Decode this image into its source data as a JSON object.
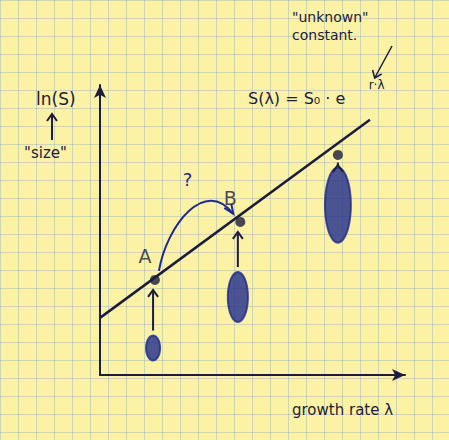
{
  "chart_data": {
    "type": "line",
    "xlabel": "growth rate λ",
    "ylabel": "ln(S)",
    "ylabel_note": "\"size\"",
    "equation": "S(λ) = S₀ · e",
    "equation_exponent": "r·λ",
    "constant_note": "\"unknown\" constant.",
    "transition_label": "?",
    "series": [
      {
        "type": "line",
        "color": "#1c1c3c",
        "x": [
          0,
          8.85
        ],
        "values": [
          1.97,
          8.8
        ],
        "marker": "none"
      },
      {
        "type": "scatter",
        "color": "#1c1c3c",
        "x": [
          1.8,
          4.6,
          7.8
        ],
        "values": [
          3.28,
          5.28,
          7.59
        ],
        "labels": [
          "A",
          "B",
          null
        ],
        "marker": "circle"
      }
    ],
    "distributions": {
      "color": "#1f2a8c",
      "x": [
        1.74,
        4.52,
        7.8
      ],
      "y": [
        0.93,
        2.69,
        5.86
      ],
      "heights": [
        0.86,
        1.72,
        2.59
      ],
      "widths": [
        0.46,
        0.66,
        0.85
      ]
    },
    "xlim": [
      0,
      10
    ],
    "ylim": [
      0,
      10
    ],
    "xticks": [],
    "yticks": [],
    "tick_labels": false,
    "grid": false
  }
}
